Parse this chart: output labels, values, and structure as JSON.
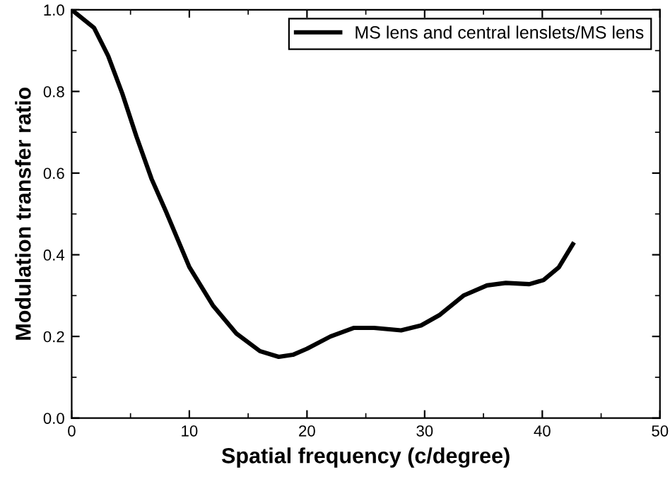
{
  "chart_data": {
    "type": "line",
    "xlabel": "Spatial frequency (c/degree)",
    "ylabel": "Modulation transfer ratio",
    "xlim": [
      0,
      50
    ],
    "ylim": [
      0,
      1.0
    ],
    "xticks": [
      0,
      10,
      20,
      30,
      40,
      50
    ],
    "yticks": [
      {
        "value": 0,
        "label": "0.0"
      },
      0.2,
      0.4,
      0.6,
      0.8,
      {
        "value": 1.0,
        "label": "1.0"
      }
    ],
    "grid": false,
    "legend": "top right",
    "marker": "none",
    "line_style": "solid",
    "series": [
      {
        "name": "MS lens and central lenslets/MS lens",
        "color": "#000000",
        "x": [
          0,
          1.9,
          3.1,
          4.3,
          5.5,
          6.8,
          8,
          10,
          12,
          14,
          16,
          17.6,
          18.8,
          20,
          22,
          24,
          25.7,
          28,
          29.7,
          31.3,
          33.3,
          35.3,
          36.9,
          38.9,
          40.1,
          41.4,
          42.6
        ],
        "values": [
          1.0,
          0.956,
          0.887,
          0.795,
          0.69,
          0.585,
          0.507,
          0.37,
          0.276,
          0.207,
          0.164,
          0.15,
          0.155,
          0.17,
          0.2,
          0.221,
          0.221,
          0.215,
          0.227,
          0.253,
          0.3,
          0.325,
          0.331,
          0.328,
          0.338,
          0.369,
          0.426
        ]
      }
    ]
  }
}
